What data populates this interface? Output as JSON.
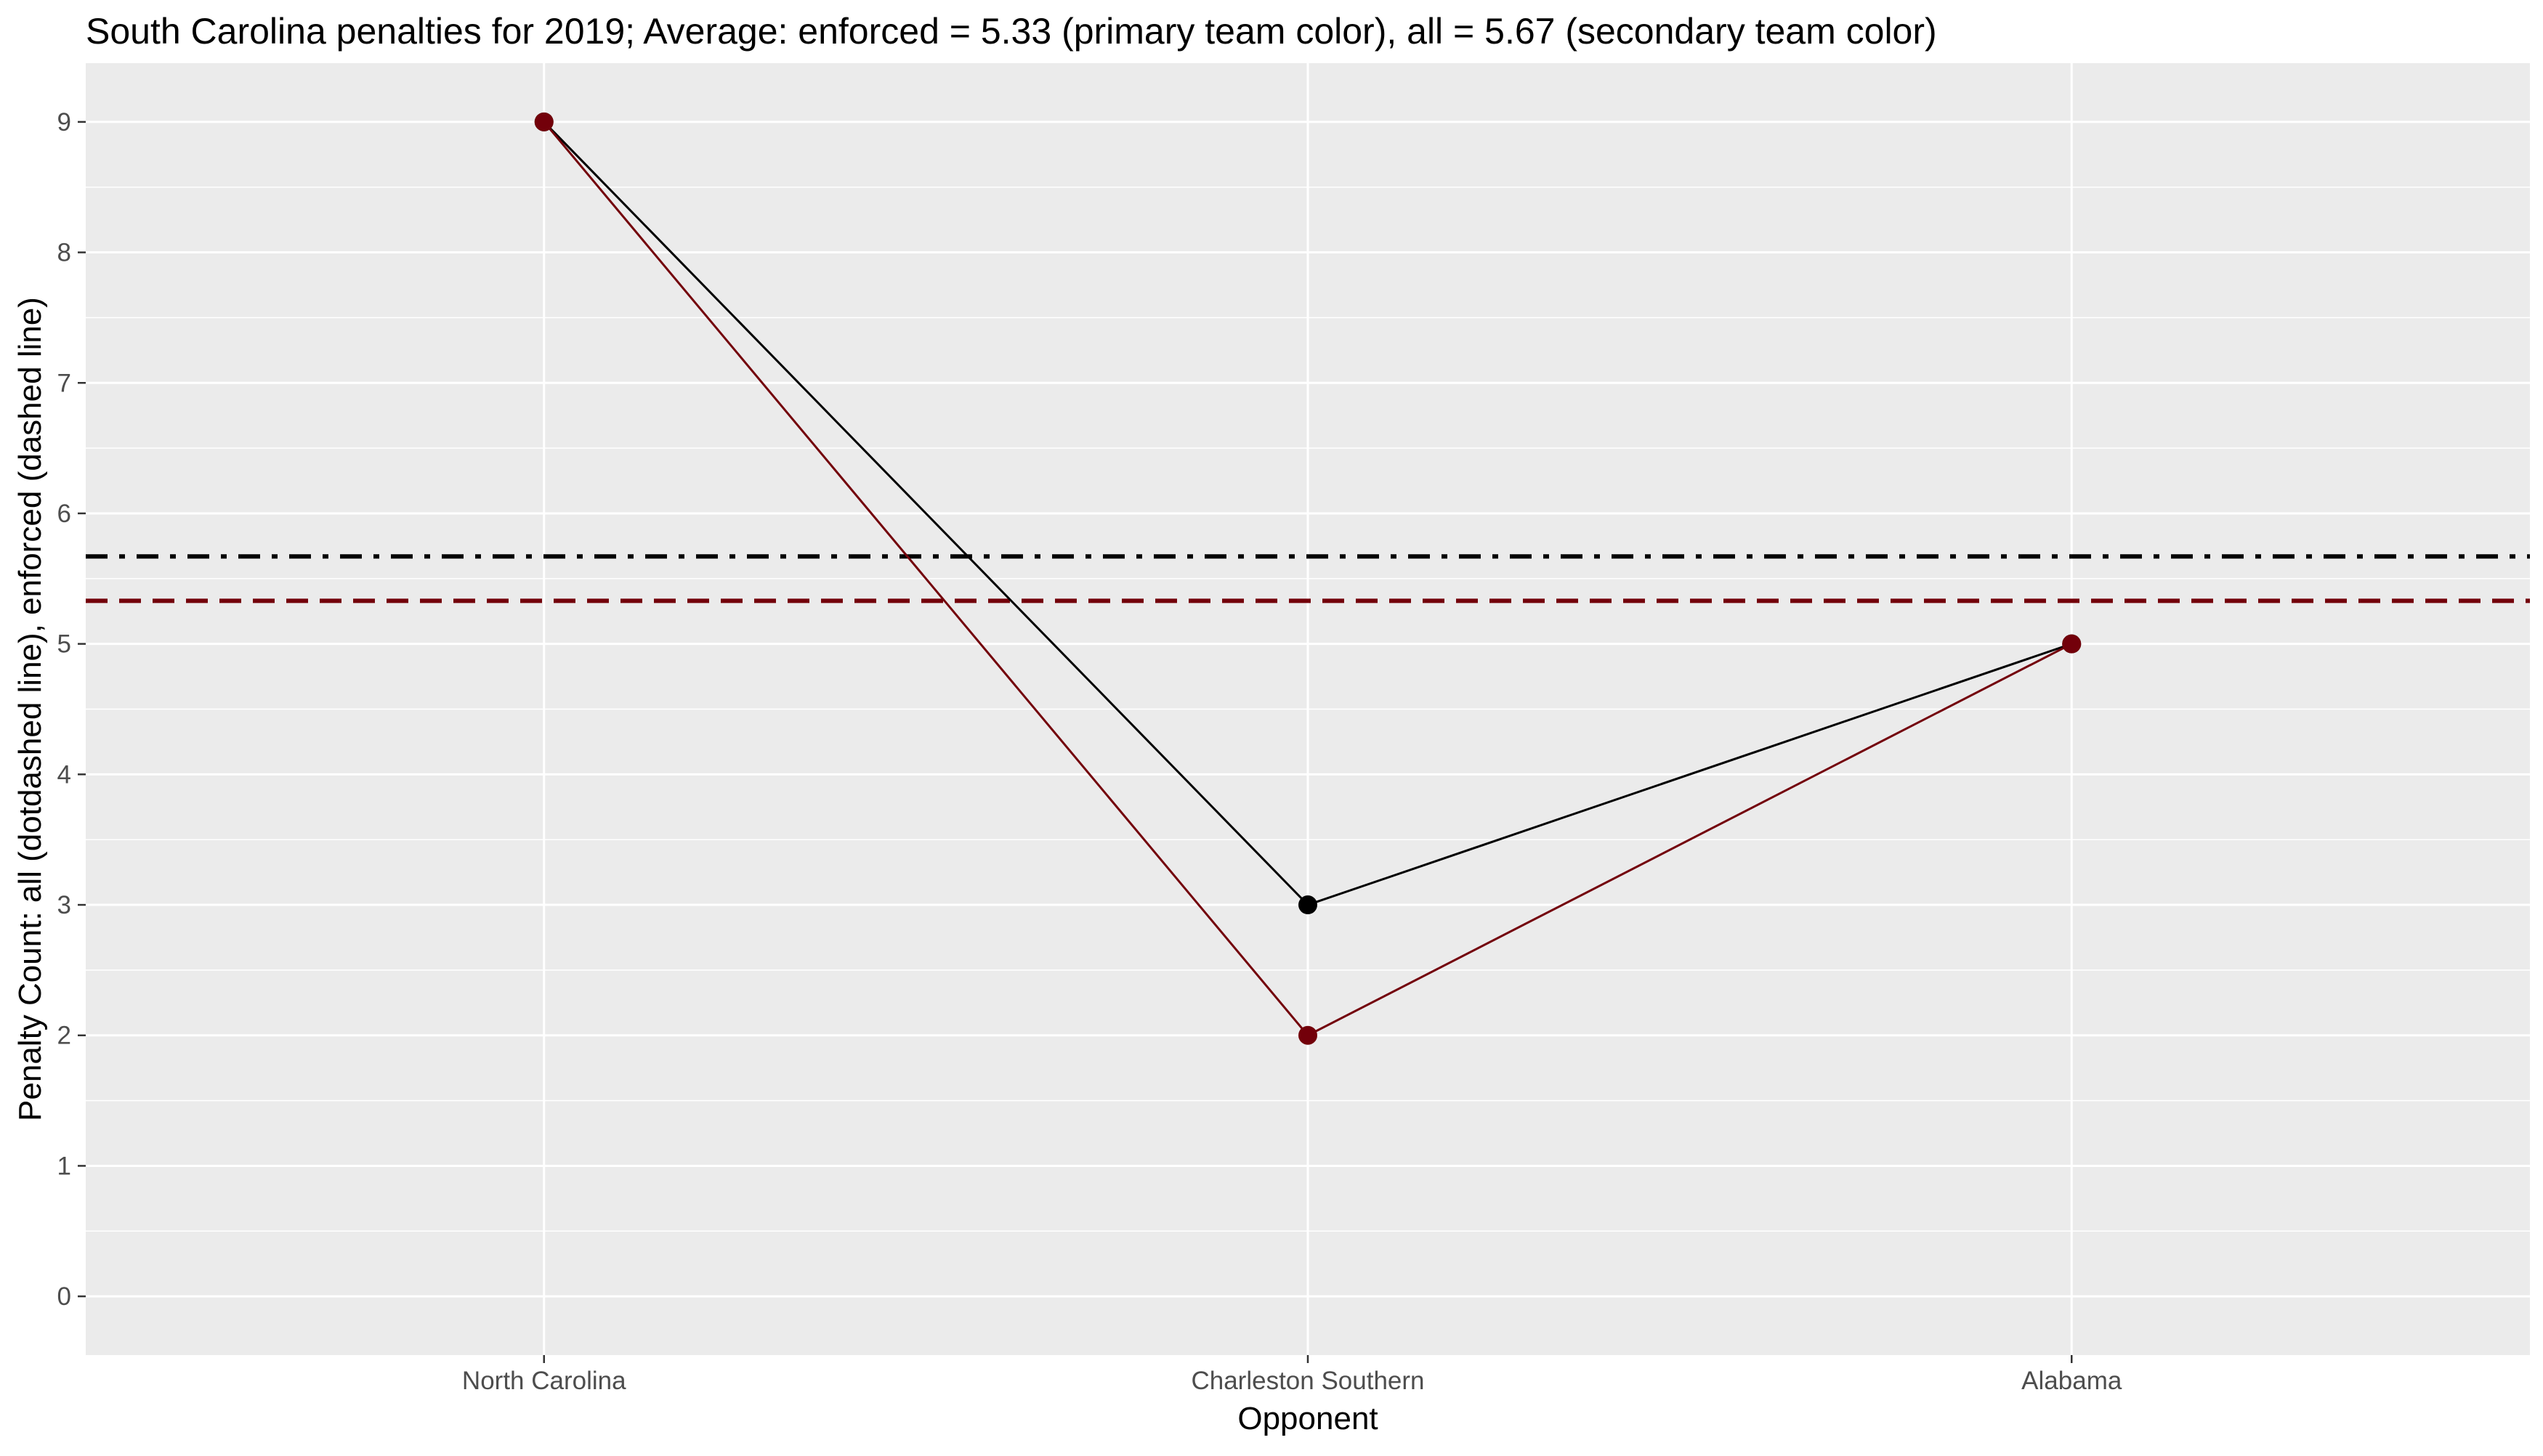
{
  "chart_data": {
    "type": "line",
    "title": "South Carolina penalties for 2019; Average: enforced = 5.33 (primary team color), all = 5.67 (secondary team color)",
    "xlabel": "Opponent",
    "ylabel": "Penalty Count: all (dotdashed line), enforced (dashed line)",
    "categories": [
      "North Carolina",
      "Charleston Southern",
      "Alabama"
    ],
    "ylim": [
      -0.45,
      9.45
    ],
    "yticks": [
      0,
      1,
      2,
      3,
      4,
      5,
      6,
      7,
      8,
      9
    ],
    "grid": true,
    "legend": "none",
    "series": [
      {
        "values": [
          9,
          3,
          5
        ],
        "color": "#000000"
      },
      {
        "values": [
          9,
          2,
          5
        ],
        "color": "#73000A"
      }
    ],
    "reference_lines": [
      {
        "value": 5.67,
        "style": "dotdash",
        "color": "#000000"
      },
      {
        "value": 5.33,
        "style": "dashed",
        "color": "#73000A"
      }
    ],
    "colors": {
      "panel_background": "#EBEBEB",
      "gridline": "#FFFFFF"
    }
  }
}
